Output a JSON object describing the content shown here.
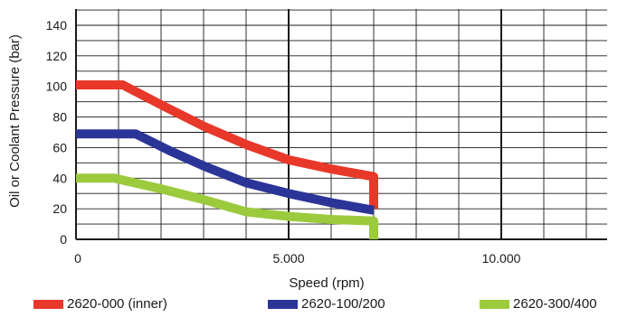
{
  "chart_data": {
    "type": "line",
    "xlabel": "Speed (rpm)",
    "ylabel": "Oil or Coolant Pressure (bar)",
    "xlim": [
      0,
      12500
    ],
    "ylim": [
      0,
      150
    ],
    "grid": true,
    "legend_position": "bottom",
    "x_ticks": [
      {
        "value": 0,
        "label": "0"
      },
      {
        "value": 5000,
        "label": "5.000"
      },
      {
        "value": 10000,
        "label": "10.000"
      }
    ],
    "y_ticks": [
      {
        "value": 0,
        "label": "0"
      },
      {
        "value": 20,
        "label": "20"
      },
      {
        "value": 40,
        "label": "40"
      },
      {
        "value": 60,
        "label": "60"
      },
      {
        "value": 80,
        "label": "80"
      },
      {
        "value": 100,
        "label": "100"
      },
      {
        "value": 120,
        "label": "120"
      },
      {
        "value": 140,
        "label": "140"
      }
    ],
    "series": [
      {
        "name": "2620-000 (inner)",
        "color": "#e8382a",
        "x": [
          0,
          1100,
          2000,
          3000,
          4000,
          5000,
          6000,
          7000,
          7000
        ],
        "y": [
          101,
          101,
          88,
          74,
          62,
          52,
          46,
          41,
          20
        ]
      },
      {
        "name": "2620-100/200",
        "color": "#2b3597",
        "x": [
          0,
          1400,
          2200,
          3000,
          4000,
          5000,
          6000,
          7000
        ],
        "y": [
          69,
          69,
          58,
          48,
          37,
          30,
          24,
          19
        ]
      },
      {
        "name": "2620-300/400",
        "color": "#9bcb3d",
        "x": [
          0,
          900,
          2000,
          3000,
          4000,
          5000,
          6000,
          7000,
          7000
        ],
        "y": [
          40,
          40,
          33,
          26,
          18,
          15,
          13,
          12,
          0
        ]
      }
    ]
  }
}
